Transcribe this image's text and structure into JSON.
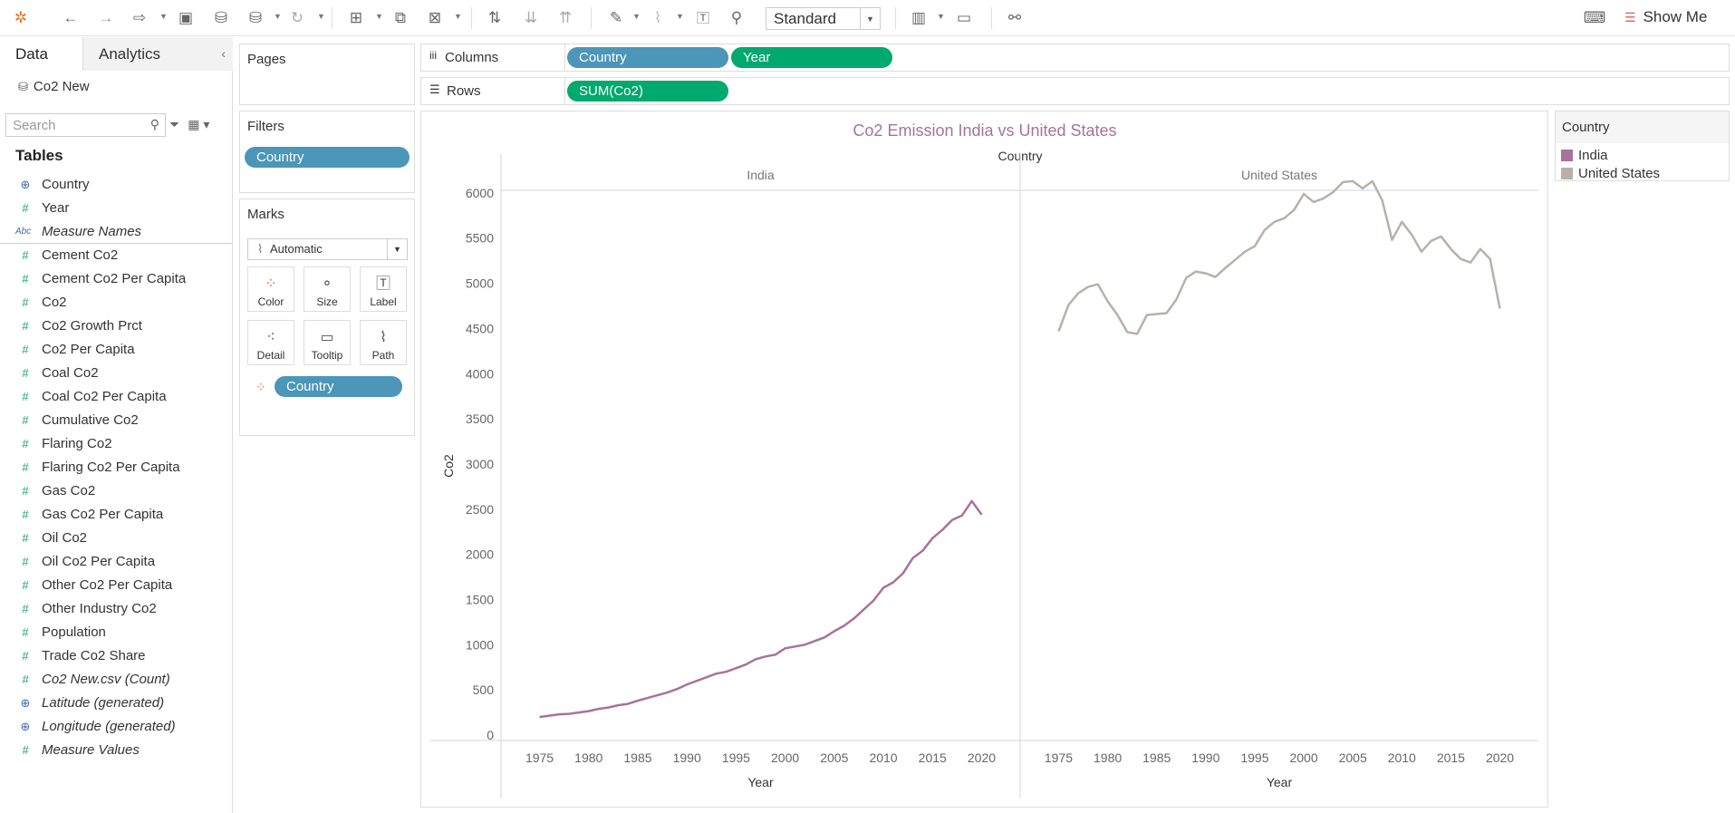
{
  "toolbar": {
    "icons": [
      "tableau-logo-icon",
      "undo-icon",
      "redo-icon",
      "replay-icon",
      "save-icon",
      "new-datasource-icon",
      "datasource-icon",
      "refresh-icon",
      "new-worksheet-icon",
      "duplicate-icon",
      "clear-icon",
      "swap-icon",
      "sort-asc-icon",
      "sort-desc-icon",
      "highlight-icon",
      "attach-icon",
      "text-icon",
      "pin-icon",
      "chart-icon",
      "presentation-icon",
      "share-icon"
    ],
    "fit_mode": "Standard",
    "show_me": "Show Me"
  },
  "data_pane": {
    "tab_data": "Data",
    "tab_analytics": "Analytics",
    "datasource": "Co2 New",
    "search_placeholder": "Search",
    "tables_heading": "Tables",
    "fields": [
      {
        "name": "Country",
        "icon": "globe",
        "italic": false
      },
      {
        "name": "Year",
        "icon": "hash",
        "italic": false
      },
      {
        "name": "Measure Names",
        "icon": "abc",
        "italic": true
      },
      {
        "name": "Cement Co2",
        "icon": "hash",
        "italic": false
      },
      {
        "name": "Cement Co2 Per Capita",
        "icon": "hash",
        "italic": false
      },
      {
        "name": "Co2",
        "icon": "hash",
        "italic": false
      },
      {
        "name": "Co2 Growth Prct",
        "icon": "hash",
        "italic": false
      },
      {
        "name": "Co2 Per Capita",
        "icon": "hash",
        "italic": false
      },
      {
        "name": "Coal Co2",
        "icon": "hash",
        "italic": false
      },
      {
        "name": "Coal Co2 Per Capita",
        "icon": "hash",
        "italic": false
      },
      {
        "name": "Cumulative Co2",
        "icon": "hash",
        "italic": false
      },
      {
        "name": "Flaring Co2",
        "icon": "hash",
        "italic": false
      },
      {
        "name": "Flaring Co2 Per Capita",
        "icon": "hash",
        "italic": false
      },
      {
        "name": "Gas Co2",
        "icon": "hash",
        "italic": false
      },
      {
        "name": "Gas Co2 Per Capita",
        "icon": "hash",
        "italic": false
      },
      {
        "name": "Oil Co2",
        "icon": "hash",
        "italic": false
      },
      {
        "name": "Oil Co2 Per Capita",
        "icon": "hash",
        "italic": false
      },
      {
        "name": "Other Co2 Per Capita",
        "icon": "hash",
        "italic": false
      },
      {
        "name": "Other Industry Co2",
        "icon": "hash",
        "italic": false
      },
      {
        "name": "Population",
        "icon": "hash",
        "italic": false
      },
      {
        "name": "Trade Co2 Share",
        "icon": "hash",
        "italic": false
      },
      {
        "name": "Co2 New.csv (Count)",
        "icon": "hash",
        "italic": true
      },
      {
        "name": "Latitude (generated)",
        "icon": "globe",
        "italic": true
      },
      {
        "name": "Longitude (generated)",
        "icon": "globe",
        "italic": true
      },
      {
        "name": "Measure Values",
        "icon": "hash",
        "italic": true
      }
    ]
  },
  "shelves": {
    "pages_label": "Pages",
    "filters_label": "Filters",
    "filter_pill": "Country",
    "columns_label": "Columns",
    "columns_pills": [
      "Country",
      "Year"
    ],
    "rows_label": "Rows",
    "rows_pills": [
      "SUM(Co2)"
    ]
  },
  "marks": {
    "title": "Marks",
    "mark_type": "Automatic",
    "buttons": [
      "Color",
      "Size",
      "Label",
      "Detail",
      "Tooltip",
      "Path"
    ],
    "color_pill": "Country"
  },
  "legend": {
    "title": "Country",
    "items": [
      {
        "name": "India",
        "color": "#a8729c"
      },
      {
        "name": "United States",
        "color": "#b9b0ab"
      }
    ]
  },
  "chart_data": {
    "type": "line",
    "title": "Co2 Emission India vs United States",
    "column_header": "Country",
    "panels": [
      "India",
      "United States"
    ],
    "xlabel": "Year",
    "ylabel": "Co2",
    "x_ticks": [
      1975,
      1980,
      1985,
      1990,
      1995,
      2000,
      2005,
      2010,
      2015,
      2020
    ],
    "y_ticks": [
      0,
      500,
      1000,
      1500,
      2000,
      2500,
      3000,
      3500,
      4000,
      4500,
      5000,
      5500,
      6000
    ],
    "ylim": [
      0,
      6300
    ],
    "xlim": [
      1972,
      2023
    ],
    "series": [
      {
        "name": "India",
        "color": "#a8729c",
        "x": [
          1975,
          1976,
          1977,
          1978,
          1979,
          1980,
          1981,
          1982,
          1983,
          1984,
          1985,
          1986,
          1987,
          1988,
          1989,
          1990,
          1991,
          1992,
          1993,
          1994,
          1995,
          1996,
          1997,
          1998,
          1999,
          2000,
          2001,
          2002,
          2003,
          2004,
          2005,
          2006,
          2007,
          2008,
          2009,
          2010,
          2011,
          2012,
          2013,
          2014,
          2015,
          2016,
          2017,
          2018,
          2019,
          2020
        ],
        "y": [
          200,
          215,
          230,
          235,
          250,
          265,
          290,
          305,
          330,
          345,
          380,
          410,
          440,
          470,
          510,
          560,
          600,
          640,
          680,
          700,
          740,
          780,
          840,
          870,
          890,
          960,
          980,
          1000,
          1040,
          1080,
          1150,
          1210,
          1290,
          1390,
          1490,
          1630,
          1690,
          1790,
          1960,
          2040,
          2180,
          2270,
          2380,
          2430,
          2590,
          2440
        ]
      },
      {
        "name": "United States",
        "color": "#b9b0ab",
        "x": [
          1975,
          1976,
          1977,
          1978,
          1979,
          1980,
          1981,
          1982,
          1983,
          1984,
          1985,
          1986,
          1987,
          1988,
          1989,
          1990,
          1991,
          1992,
          1993,
          1994,
          1995,
          1996,
          1997,
          1998,
          1999,
          2000,
          2001,
          2002,
          2003,
          2004,
          2005,
          2006,
          2007,
          2008,
          2009,
          2010,
          2011,
          2012,
          2013,
          2014,
          2015,
          2016,
          2017,
          2018,
          2019,
          2020
        ],
        "y": [
          4470,
          4760,
          4890,
          4960,
          4990,
          4800,
          4650,
          4460,
          4440,
          4650,
          4660,
          4670,
          4820,
          5060,
          5130,
          5110,
          5070,
          5170,
          5260,
          5350,
          5410,
          5590,
          5680,
          5720,
          5810,
          5990,
          5900,
          5940,
          6010,
          6120,
          6130,
          6050,
          6130,
          5920,
          5480,
          5680,
          5540,
          5350,
          5470,
          5520,
          5380,
          5270,
          5230,
          5380,
          5270,
          4720
        ]
      }
    ]
  }
}
